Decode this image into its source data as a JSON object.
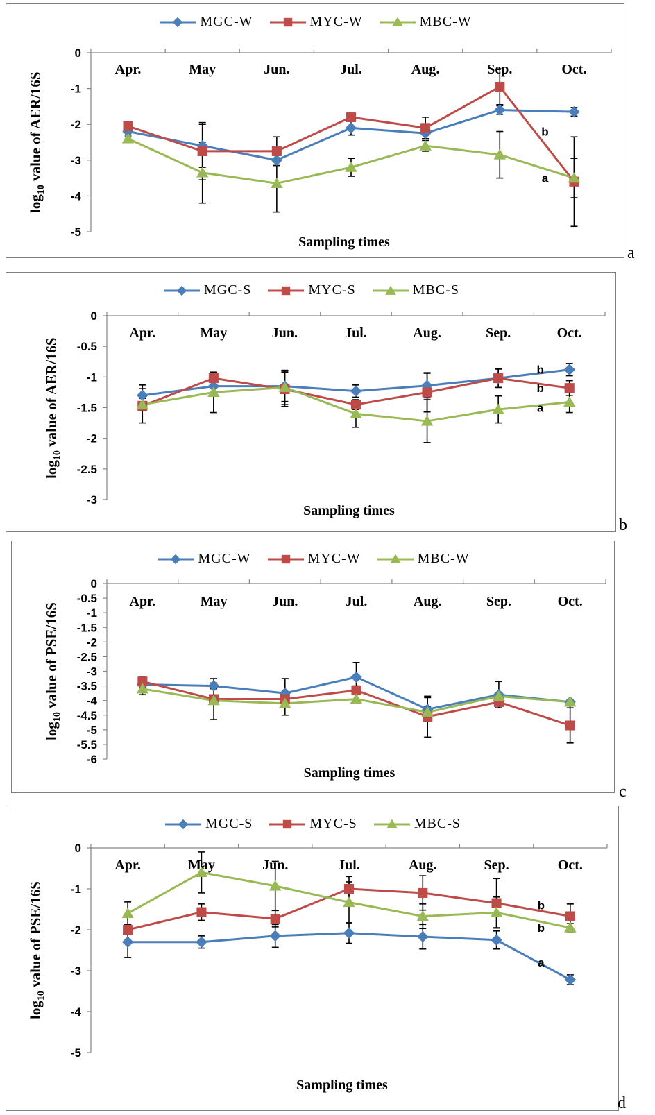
{
  "chart_data": [
    {
      "type": "line",
      "panel_label": "a",
      "categories": [
        "Apr.",
        "May",
        "Jun.",
        "Jul.",
        "Aug.",
        "Sep.",
        "Oct."
      ],
      "ylabel": "log10 value of AER/16S",
      "ylabel_main": "log",
      "ylabel_sub": "10",
      "ylabel_rest": " value of AER/16S",
      "xlabel": "Sampling times",
      "ylim": [
        -5,
        0
      ],
      "yticks": [
        0,
        -1,
        -2,
        -3,
        -4,
        -5
      ],
      "ytick_labels": [
        "0",
        "-1",
        "-2",
        "-3",
        "-4",
        "-5"
      ],
      "series": [
        {
          "name": "MGC-W",
          "color": "#4a7ebb",
          "marker": "diamond",
          "values": [
            -2.2,
            -2.6,
            -3.0,
            -2.1,
            -2.25,
            -1.6,
            -1.65
          ],
          "err": [
            0.15,
            0.6,
            0.15,
            0.2,
            0.15,
            0.12,
            0.12
          ]
        },
        {
          "name": "MYC-W",
          "color": "#be4b48",
          "marker": "square",
          "values": [
            -2.05,
            -2.75,
            -2.75,
            -1.8,
            -2.1,
            -0.95,
            -3.6
          ],
          "err": [
            0.1,
            0.8,
            0.4,
            0.05,
            0.3,
            0.5,
            1.25
          ]
        },
        {
          "name": "MBC-W",
          "color": "#98b954",
          "marker": "triangle",
          "values": [
            -2.4,
            -3.35,
            -3.65,
            -3.2,
            -2.6,
            -2.85,
            -3.5
          ],
          "err": [
            0.1,
            0.85,
            0.8,
            0.25,
            0.15,
            0.65,
            0.55
          ]
        }
      ],
      "annotations": [
        {
          "text": "b",
          "x": 6,
          "y": -2.2
        },
        {
          "text": "a",
          "x": 6,
          "y": -3.5
        }
      ]
    },
    {
      "type": "line",
      "panel_label": "b",
      "categories": [
        "Apr.",
        "May",
        "Jun.",
        "Jul.",
        "Aug.",
        "Sep.",
        "Oct."
      ],
      "ylabel": "log10 value of AER/16S",
      "ylabel_main": "log",
      "ylabel_sub": "10",
      "ylabel_rest": " value of AER/16S",
      "xlabel": "Sampling times",
      "ylim": [
        -3,
        0
      ],
      "yticks": [
        0,
        -0.5,
        -1,
        -1.5,
        -2,
        -2.5,
        -3
      ],
      "ytick_labels": [
        "0",
        "-0.5",
        "-1",
        "-1.5",
        "-2",
        "-2.5",
        "-3"
      ],
      "series": [
        {
          "name": "MGC-S",
          "color": "#4a7ebb",
          "marker": "diamond",
          "values": [
            -1.3,
            -1.15,
            -1.15,
            -1.23,
            -1.14,
            -1.02,
            -0.88
          ],
          "err": [
            0.17,
            0.1,
            0.25,
            0.1,
            0.2,
            0.15,
            0.1
          ]
        },
        {
          "name": "MYC-S",
          "color": "#be4b48",
          "marker": "square",
          "values": [
            -1.47,
            -1.02,
            -1.2,
            -1.45,
            -1.25,
            -1.02,
            -1.18
          ],
          "err": [
            0.28,
            0.1,
            0.28,
            0.08,
            0.32,
            0.15,
            0.12
          ]
        },
        {
          "name": "MBC-S",
          "color": "#98b954",
          "marker": "triangle",
          "values": [
            -1.45,
            -1.25,
            -1.17,
            -1.6,
            -1.72,
            -1.53,
            -1.41
          ],
          "err": [
            0.1,
            0.33,
            0.28,
            0.22,
            0.35,
            0.22,
            0.17
          ]
        }
      ],
      "annotations": [
        {
          "text": "b",
          "x": 6,
          "y": -0.88
        },
        {
          "text": "b",
          "x": 6,
          "y": -1.18
        },
        {
          "text": "a",
          "x": 6,
          "y": -1.5
        }
      ]
    },
    {
      "type": "line",
      "panel_label": "c",
      "categories": [
        "Apr.",
        "May",
        "Jun.",
        "Jul.",
        "Aug.",
        "Sep.",
        "Oct."
      ],
      "ylabel": "log10 value of PSE/16S",
      "ylabel_main": "log",
      "ylabel_sub": "10",
      "ylabel_rest": " value of PSE/16S",
      "xlabel": "Sampling times",
      "ylim": [
        -6,
        0
      ],
      "yticks": [
        0,
        -0.5,
        -1,
        -1.5,
        -2,
        -2.5,
        -3,
        -3.5,
        -4,
        -4.5,
        -5,
        -5.5,
        -6
      ],
      "ytick_labels": [
        "0",
        "-0.5",
        "-1",
        "-1.5",
        "-2",
        "-2.5",
        "-3",
        "-3.5",
        "-4",
        "-4.5",
        "-5",
        "-5.5",
        "-6"
      ],
      "series": [
        {
          "name": "MGC-W",
          "color": "#4a7ebb",
          "marker": "diamond",
          "values": [
            -3.45,
            -3.5,
            -3.75,
            -3.2,
            -4.3,
            -3.8,
            -4.05
          ],
          "err": [
            0.1,
            0.1,
            0.5,
            0.5,
            0.4,
            0.45,
            0.08
          ]
        },
        {
          "name": "MYC-W",
          "color": "#be4b48",
          "marker": "square",
          "values": [
            -3.35,
            -3.95,
            -3.95,
            -3.65,
            -4.55,
            -4.05,
            -4.85
          ],
          "err": [
            0.15,
            0.7,
            0.1,
            0.15,
            0.7,
            0.2,
            0.6
          ]
        },
        {
          "name": "MBC-W",
          "color": "#98b954",
          "marker": "triangle",
          "values": [
            -3.6,
            -4.0,
            -4.1,
            -3.95,
            -4.4,
            -3.85,
            -4.05
          ],
          "err": [
            0.2,
            0.1,
            0.4,
            0.15,
            0.2,
            0.1,
            0.05
          ]
        }
      ],
      "annotations": []
    },
    {
      "type": "line",
      "panel_label": "d",
      "categories": [
        "Apr.",
        "May",
        "Jun.",
        "Jul.",
        "Aug.",
        "Sep.",
        "Oct."
      ],
      "ylabel": "log10 value of PSE/16S",
      "ylabel_main": "log",
      "ylabel_sub": "10",
      "ylabel_rest": " value of PSE/16S",
      "xlabel": "Sampling times",
      "ylim": [
        -5,
        0
      ],
      "yticks": [
        0,
        -1,
        -2,
        -3,
        -4,
        -5
      ],
      "ytick_labels": [
        "0",
        "-1",
        "-2",
        "-3",
        "-4",
        "-5"
      ],
      "series": [
        {
          "name": "MGC-S",
          "color": "#4a7ebb",
          "marker": "diamond",
          "values": [
            -2.3,
            -2.3,
            -2.15,
            -2.08,
            -2.17,
            -2.25,
            -3.22
          ],
          "err": [
            0.38,
            0.15,
            0.28,
            0.25,
            0.3,
            0.22,
            0.12
          ]
        },
        {
          "name": "MYC-S",
          "color": "#be4b48",
          "marker": "square",
          "values": [
            -2.0,
            -1.57,
            -1.73,
            -1.0,
            -1.1,
            -1.35,
            -1.67
          ],
          "err": [
            0.12,
            0.2,
            0.2,
            0.3,
            0.42,
            0.6,
            0.3
          ]
        },
        {
          "name": "MBC-S",
          "color": "#98b954",
          "marker": "triangle",
          "values": [
            -1.6,
            -0.6,
            -0.93,
            -1.33,
            -1.67,
            -1.58,
            -1.95
          ],
          "err": [
            0.28,
            0.5,
            0.6,
            0.5,
            0.3,
            0.38,
            0.1
          ]
        }
      ],
      "annotations": [
        {
          "text": "b",
          "x": 6,
          "y": -1.4
        },
        {
          "text": "b",
          "x": 6,
          "y": -1.95
        },
        {
          "text": "a",
          "x": 6,
          "y": -2.8
        }
      ]
    }
  ]
}
